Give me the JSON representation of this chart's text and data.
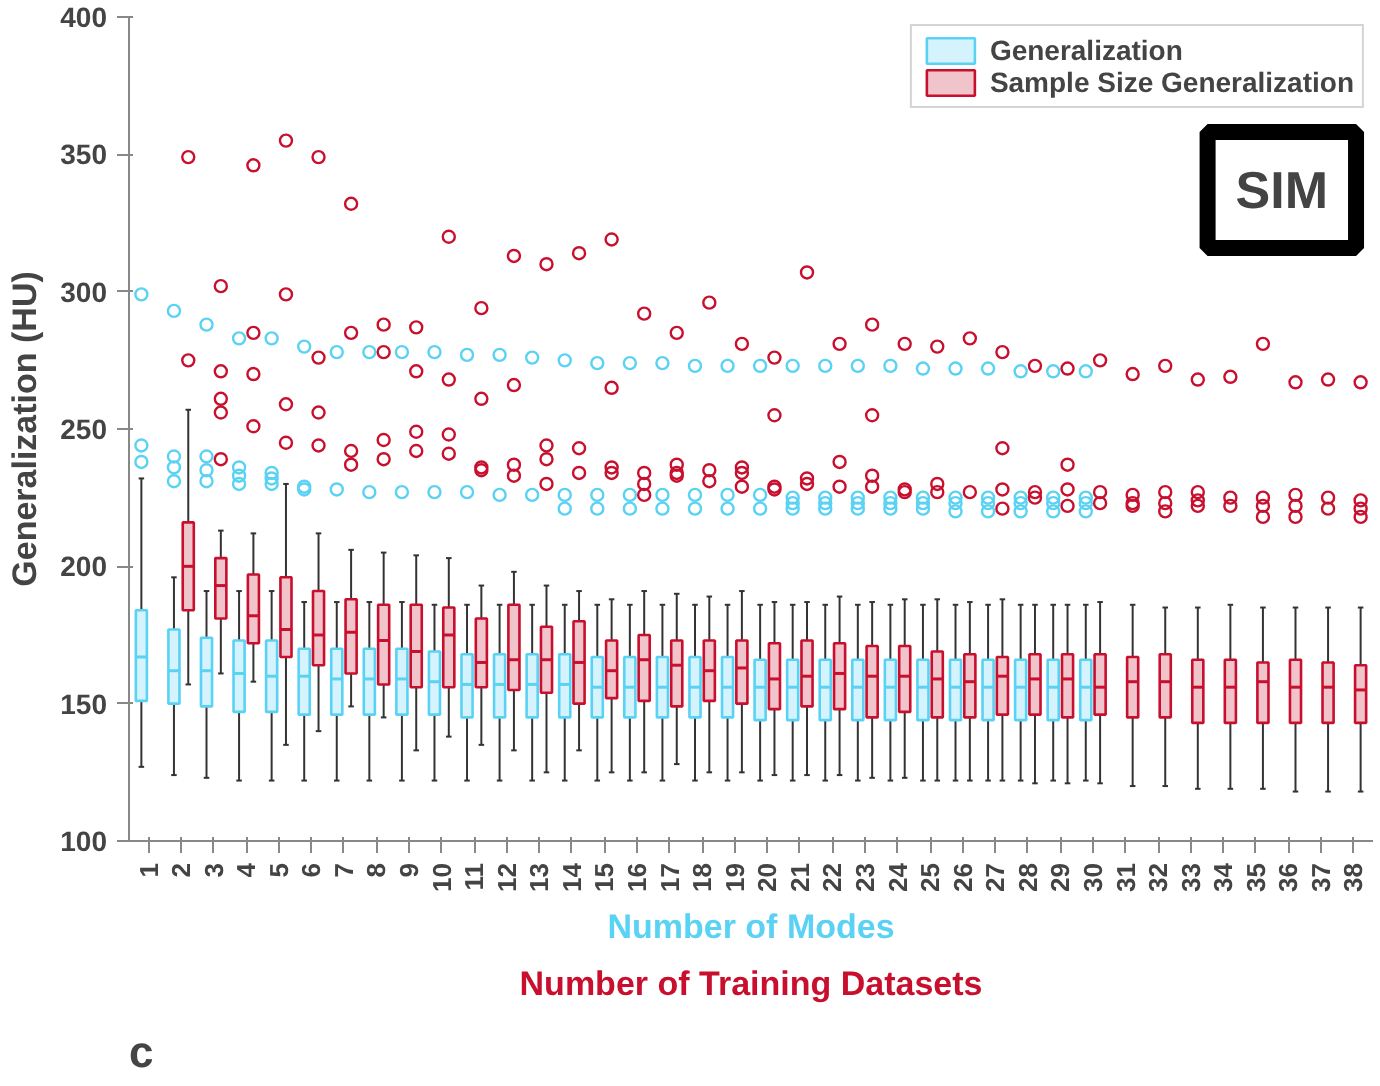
{
  "chart_data": {
    "type": "box",
    "xlabel": "Number of Modes",
    "ylabel": "Generalization (HU)",
    "annotations": [
      "Number of Training Datasets",
      "SIM",
      "c"
    ],
    "categories": [
      "1",
      "2",
      "3",
      "4",
      "5",
      "6",
      "7",
      "8",
      "9",
      "10",
      "11",
      "12",
      "13",
      "14",
      "15",
      "16",
      "17",
      "18",
      "19",
      "20",
      "21",
      "22",
      "23",
      "24",
      "25",
      "26",
      "27",
      "28",
      "29",
      "30",
      "31",
      "32",
      "33",
      "34",
      "35",
      "36",
      "37",
      "38"
    ],
    "ylim": [
      100,
      400
    ],
    "yticks": [
      100,
      150,
      200,
      250,
      300,
      350,
      400
    ],
    "grid": false,
    "legend": "top right",
    "marker": "circle",
    "series": [
      {
        "name": "Generalization",
        "color": "#5ad2f4",
        "boxes": [
          {
            "low": 127,
            "q1": 151,
            "median": 167,
            "q3": 184,
            "high": 232,
            "outliers": [
              299,
              244,
              238
            ]
          },
          {
            "low": 124,
            "q1": 150,
            "median": 162,
            "q3": 177,
            "high": 196,
            "outliers": [
              293,
              240,
              236,
              231
            ]
          },
          {
            "low": 123,
            "q1": 149,
            "median": 162,
            "q3": 174,
            "high": 191,
            "outliers": [
              288,
              240,
              235,
              231
            ]
          },
          {
            "low": 122,
            "q1": 147,
            "median": 161,
            "q3": 173,
            "high": 191,
            "outliers": [
              283,
              236,
              233,
              230
            ]
          },
          {
            "low": 122,
            "q1": 147,
            "median": 160,
            "q3": 173,
            "high": 191,
            "outliers": [
              283,
              234,
              232,
              230
            ]
          },
          {
            "low": 122,
            "q1": 146,
            "median": 160,
            "q3": 170,
            "high": 187,
            "outliers": [
              280,
              229,
              228
            ]
          },
          {
            "low": 122,
            "q1": 146,
            "median": 159,
            "q3": 170,
            "high": 187,
            "outliers": [
              278,
              228
            ]
          },
          {
            "low": 122,
            "q1": 146,
            "median": 159,
            "q3": 170,
            "high": 187,
            "outliers": [
              278,
              227
            ]
          },
          {
            "low": 122,
            "q1": 146,
            "median": 159,
            "q3": 170,
            "high": 187,
            "outliers": [
              278,
              227
            ]
          },
          {
            "low": 122,
            "q1": 146,
            "median": 158,
            "q3": 169,
            "high": 186,
            "outliers": [
              278,
              227
            ]
          },
          {
            "low": 122,
            "q1": 145,
            "median": 157,
            "q3": 168,
            "high": 186,
            "outliers": [
              277,
              227
            ]
          },
          {
            "low": 122,
            "q1": 145,
            "median": 157,
            "q3": 168,
            "high": 186,
            "outliers": [
              277,
              226
            ]
          },
          {
            "low": 122,
            "q1": 145,
            "median": 157,
            "q3": 168,
            "high": 186,
            "outliers": [
              276,
              226
            ]
          },
          {
            "low": 122,
            "q1": 145,
            "median": 157,
            "q3": 168,
            "high": 186,
            "outliers": [
              275,
              226,
              221
            ]
          },
          {
            "low": 122,
            "q1": 145,
            "median": 156,
            "q3": 167,
            "high": 186,
            "outliers": [
              274,
              226,
              221
            ]
          },
          {
            "low": 122,
            "q1": 145,
            "median": 156,
            "q3": 167,
            "high": 186,
            "outliers": [
              274,
              226,
              221
            ]
          },
          {
            "low": 122,
            "q1": 145,
            "median": 156,
            "q3": 167,
            "high": 186,
            "outliers": [
              274,
              226,
              221
            ]
          },
          {
            "low": 122,
            "q1": 145,
            "median": 156,
            "q3": 167,
            "high": 186,
            "outliers": [
              273,
              226,
              221
            ]
          },
          {
            "low": 122,
            "q1": 145,
            "median": 156,
            "q3": 167,
            "high": 186,
            "outliers": [
              273,
              226,
              221
            ]
          },
          {
            "low": 122,
            "q1": 144,
            "median": 156,
            "q3": 166,
            "high": 186,
            "outliers": [
              273,
              226,
              221
            ]
          },
          {
            "low": 122,
            "q1": 144,
            "median": 156,
            "q3": 166,
            "high": 186,
            "outliers": [
              273,
              225,
              223,
              221
            ]
          },
          {
            "low": 122,
            "q1": 144,
            "median": 156,
            "q3": 166,
            "high": 186,
            "outliers": [
              273,
              225,
              223,
              221
            ]
          },
          {
            "low": 122,
            "q1": 144,
            "median": 156,
            "q3": 166,
            "high": 186,
            "outliers": [
              273,
              225,
              223,
              221
            ]
          },
          {
            "low": 122,
            "q1": 144,
            "median": 156,
            "q3": 166,
            "high": 186,
            "outliers": [
              273,
              225,
              223,
              221
            ]
          },
          {
            "low": 122,
            "q1": 144,
            "median": 156,
            "q3": 166,
            "high": 186,
            "outliers": [
              272,
              225,
              223,
              221
            ]
          },
          {
            "low": 122,
            "q1": 144,
            "median": 156,
            "q3": 166,
            "high": 186,
            "outliers": [
              272,
              225,
              223,
              220
            ]
          },
          {
            "low": 122,
            "q1": 144,
            "median": 156,
            "q3": 166,
            "high": 186,
            "outliers": [
              272,
              225,
              223,
              220
            ]
          },
          {
            "low": 122,
            "q1": 144,
            "median": 156,
            "q3": 166,
            "high": 186,
            "outliers": [
              271,
              225,
              223,
              220
            ]
          },
          {
            "low": 122,
            "q1": 144,
            "median": 156,
            "q3": 166,
            "high": 186,
            "outliers": [
              271,
              225,
              223,
              220
            ]
          },
          {
            "low": 122,
            "q1": 144,
            "median": 156,
            "q3": 166,
            "high": 186,
            "outliers": [
              271,
              225,
              223,
              220
            ]
          },
          null,
          null,
          null,
          null,
          null,
          null,
          null,
          null
        ]
      },
      {
        "name": "Sample Size Generalization",
        "color": "#c8102e",
        "boxes": [
          null,
          {
            "low": 157,
            "q1": 184,
            "median": 200,
            "q3": 216,
            "high": 257,
            "outliers": [
              349,
              275
            ]
          },
          {
            "low": 161,
            "q1": 181,
            "median": 193,
            "q3": 203,
            "high": 213,
            "outliers": [
              302,
              271,
              261,
              256,
              239
            ]
          },
          {
            "low": 158,
            "q1": 172,
            "median": 182,
            "q3": 197,
            "high": 212,
            "outliers": [
              346,
              285,
              270,
              251
            ]
          },
          {
            "low": 135,
            "q1": 167,
            "median": 177,
            "q3": 196,
            "high": 230,
            "outliers": [
              355,
              299,
              259,
              245
            ]
          },
          {
            "low": 140,
            "q1": 164,
            "median": 175,
            "q3": 191,
            "high": 212,
            "outliers": [
              349,
              276,
              256,
              244
            ]
          },
          {
            "low": 149,
            "q1": 161,
            "median": 176,
            "q3": 188,
            "high": 206,
            "outliers": [
              332,
              285,
              242,
              237
            ]
          },
          {
            "low": 145,
            "q1": 157,
            "median": 173,
            "q3": 186,
            "high": 205,
            "outliers": [
              288,
              278,
              246,
              239
            ]
          },
          {
            "low": 133,
            "q1": 156,
            "median": 169,
            "q3": 186,
            "high": 204,
            "outliers": [
              287,
              271,
              249,
              242
            ]
          },
          {
            "low": 138,
            "q1": 156,
            "median": 175,
            "q3": 185,
            "high": 203,
            "outliers": [
              320,
              268,
              248,
              241
            ]
          },
          {
            "low": 135,
            "q1": 156,
            "median": 165,
            "q3": 181,
            "high": 193,
            "outliers": [
              294,
              261,
              236,
              235
            ]
          },
          {
            "low": 133,
            "q1": 155,
            "median": 166,
            "q3": 186,
            "high": 198,
            "outliers": [
              313,
              266,
              237,
              233
            ]
          },
          {
            "low": 125,
            "q1": 154,
            "median": 166,
            "q3": 178,
            "high": 193,
            "outliers": [
              310,
              244,
              239,
              230
            ]
          },
          {
            "low": 133,
            "q1": 150,
            "median": 165,
            "q3": 180,
            "high": 191,
            "outliers": [
              314,
              243,
              234
            ]
          },
          {
            "low": 125,
            "q1": 152,
            "median": 162,
            "q3": 173,
            "high": 188,
            "outliers": [
              319,
              265,
              236,
              234
            ]
          },
          {
            "low": 125,
            "q1": 151,
            "median": 166,
            "q3": 175,
            "high": 191,
            "outliers": [
              292,
              234,
              230,
              226
            ]
          },
          {
            "low": 128,
            "q1": 149,
            "median": 164,
            "q3": 173,
            "high": 190,
            "outliers": [
              285,
              237,
              234,
              233
            ]
          },
          {
            "low": 125,
            "q1": 151,
            "median": 162,
            "q3": 173,
            "high": 189,
            "outliers": [
              296,
              235,
              231
            ]
          },
          {
            "low": 125,
            "q1": 150,
            "median": 163,
            "q3": 173,
            "high": 191,
            "outliers": [
              281,
              236,
              234,
              229
            ]
          },
          {
            "low": 124,
            "q1": 148,
            "median": 159,
            "q3": 172,
            "high": 187,
            "outliers": [
              276,
              255,
              229,
              228
            ]
          },
          {
            "low": 124,
            "q1": 149,
            "median": 160,
            "q3": 173,
            "high": 187,
            "outliers": [
              307,
              232,
              230
            ]
          },
          {
            "low": 124,
            "q1": 148,
            "median": 161,
            "q3": 172,
            "high": 189,
            "outliers": [
              281,
              238,
              229
            ]
          },
          {
            "low": 123,
            "q1": 145,
            "median": 160,
            "q3": 171,
            "high": 187,
            "outliers": [
              288,
              255,
              233,
              229
            ]
          },
          {
            "low": 123,
            "q1": 147,
            "median": 160,
            "q3": 171,
            "high": 188,
            "outliers": [
              281,
              228,
              227
            ]
          },
          {
            "low": 122,
            "q1": 145,
            "median": 159,
            "q3": 169,
            "high": 188,
            "outliers": [
              280,
              230,
              227
            ]
          },
          {
            "low": 122,
            "q1": 145,
            "median": 158,
            "q3": 168,
            "high": 187,
            "outliers": [
              283,
              227
            ]
          },
          {
            "low": 122,
            "q1": 146,
            "median": 160,
            "q3": 167,
            "high": 188,
            "outliers": [
              278,
              243,
              228,
              221
            ]
          },
          {
            "low": 121,
            "q1": 146,
            "median": 159,
            "q3": 168,
            "high": 186,
            "outliers": [
              273,
              227,
              225
            ]
          },
          {
            "low": 121,
            "q1": 145,
            "median": 159,
            "q3": 168,
            "high": 186,
            "outliers": [
              272,
              237,
              228,
              222
            ]
          },
          {
            "low": 121,
            "q1": 146,
            "median": 156,
            "q3": 168,
            "high": 187,
            "outliers": [
              275,
              227,
              223
            ]
          },
          {
            "low": 120,
            "q1": 145,
            "median": 158,
            "q3": 167,
            "high": 186,
            "outliers": [
              270,
              226,
              223,
              222
            ]
          },
          {
            "low": 120,
            "q1": 145,
            "median": 158,
            "q3": 168,
            "high": 185,
            "outliers": [
              273,
              227,
              223,
              220
            ]
          },
          {
            "low": 119,
            "q1": 143,
            "median": 156,
            "q3": 166,
            "high": 185,
            "outliers": [
              268,
              227,
              224,
              222
            ]
          },
          {
            "low": 119,
            "q1": 143,
            "median": 156,
            "q3": 166,
            "high": 186,
            "outliers": [
              269,
              225,
              222
            ]
          },
          {
            "low": 119,
            "q1": 143,
            "median": 158,
            "q3": 165,
            "high": 185,
            "outliers": [
              281,
              225,
              222,
              218
            ]
          },
          {
            "low": 118,
            "q1": 143,
            "median": 156,
            "q3": 166,
            "high": 185,
            "outliers": [
              267,
              226,
              222,
              218
            ]
          },
          {
            "low": 118,
            "q1": 143,
            "median": 156,
            "q3": 165,
            "high": 185,
            "outliers": [
              268,
              225,
              221
            ]
          },
          {
            "low": 118,
            "q1": 143,
            "median": 155,
            "q3": 164,
            "high": 185,
            "outliers": [
              267,
              224,
              221,
              218
            ]
          }
        ]
      }
    ]
  }
}
